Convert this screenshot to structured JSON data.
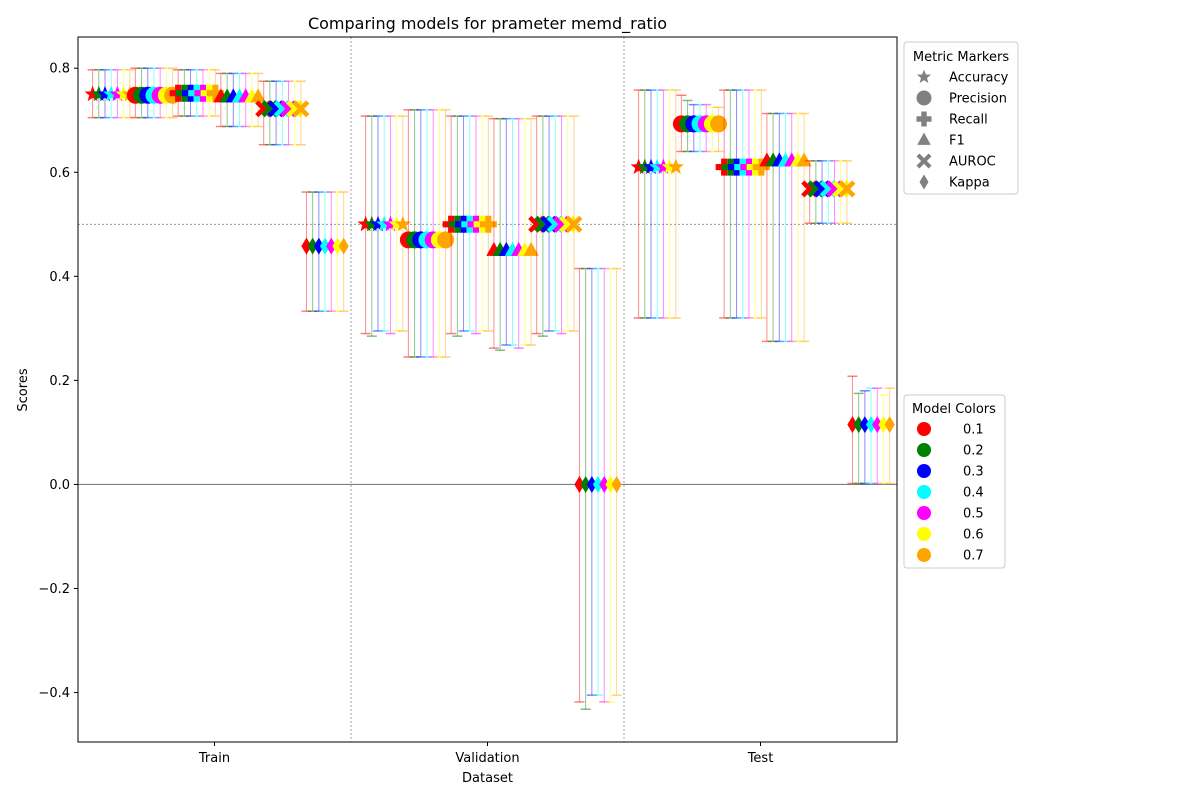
{
  "chart_data": {
    "type": "scatter",
    "title": "Comparing models for prameter memd_ratio",
    "xlabel": "Dataset",
    "ylabel": "Scores",
    "categories": [
      "Train",
      "Validation",
      "Test"
    ],
    "ylim": [
      -0.495,
      0.86
    ],
    "yticks": [
      -0.4,
      -0.2,
      0.0,
      0.2,
      0.4,
      0.6,
      0.8
    ],
    "ytick_labels": [
      "−0.4",
      "−0.2",
      "0.0",
      "0.2",
      "0.4",
      "0.6",
      "0.8"
    ],
    "reference_lines": [
      0.0,
      0.5
    ],
    "metrics": [
      "Accuracy",
      "Precision",
      "Recall",
      "F1",
      "AUROC",
      "Kappa"
    ],
    "metric_markers": [
      "star",
      "circle",
      "plus",
      "triangle",
      "cross",
      "diamond"
    ],
    "models": [
      "0.1",
      "0.2",
      "0.3",
      "0.4",
      "0.5",
      "0.6",
      "0.7"
    ],
    "model_colors": [
      "#ff0000",
      "#008000",
      "#0000ff",
      "#00ffff",
      "#ff00ff",
      "#ffff00",
      "#ffa500"
    ],
    "legend_markers_title": "Metric Markers",
    "legend_colors_title": "Model Colors",
    "legend_position": "outside-right",
    "series": [
      {
        "dataset": "Train",
        "metric": "Accuracy",
        "values": [
          0.75,
          0.75,
          0.75,
          0.75,
          0.75,
          0.75,
          0.75
        ],
        "err_low": [
          0.705,
          0.705,
          0.705,
          0.705,
          0.705,
          0.705,
          0.705
        ],
        "err_high": [
          0.797,
          0.797,
          0.797,
          0.797,
          0.797,
          0.797,
          0.797
        ]
      },
      {
        "dataset": "Train",
        "metric": "Precision",
        "values": [
          0.748,
          0.748,
          0.748,
          0.748,
          0.748,
          0.748,
          0.748
        ],
        "err_low": [
          0.705,
          0.705,
          0.705,
          0.705,
          0.705,
          0.705,
          0.705
        ],
        "err_high": [
          0.8,
          0.8,
          0.8,
          0.8,
          0.8,
          0.8,
          0.8
        ]
      },
      {
        "dataset": "Train",
        "metric": "Recall",
        "values": [
          0.752,
          0.752,
          0.752,
          0.752,
          0.752,
          0.752,
          0.752
        ],
        "err_low": [
          0.708,
          0.708,
          0.708,
          0.708,
          0.708,
          0.708,
          0.708
        ],
        "err_high": [
          0.797,
          0.797,
          0.797,
          0.797,
          0.797,
          0.797,
          0.797
        ]
      },
      {
        "dataset": "Train",
        "metric": "F1",
        "values": [
          0.745,
          0.745,
          0.745,
          0.745,
          0.745,
          0.745,
          0.745
        ],
        "err_low": [
          0.688,
          0.688,
          0.688,
          0.688,
          0.688,
          0.688,
          0.688
        ],
        "err_high": [
          0.79,
          0.79,
          0.79,
          0.79,
          0.79,
          0.79,
          0.79
        ]
      },
      {
        "dataset": "Train",
        "metric": "AUROC",
        "values": [
          0.722,
          0.722,
          0.722,
          0.722,
          0.722,
          0.722,
          0.722
        ],
        "err_low": [
          0.653,
          0.653,
          0.653,
          0.653,
          0.653,
          0.653,
          0.653
        ],
        "err_high": [
          0.775,
          0.775,
          0.775,
          0.775,
          0.775,
          0.775,
          0.775
        ]
      },
      {
        "dataset": "Train",
        "metric": "Kappa",
        "values": [
          0.458,
          0.458,
          0.458,
          0.458,
          0.458,
          0.458,
          0.458
        ],
        "err_low": [
          0.333,
          0.333,
          0.333,
          0.333,
          0.333,
          0.333,
          0.333
        ],
        "err_high": [
          0.562,
          0.562,
          0.562,
          0.562,
          0.562,
          0.562,
          0.562
        ]
      },
      {
        "dataset": "Validation",
        "metric": "Accuracy",
        "values": [
          0.5,
          0.5,
          0.5,
          0.5,
          0.5,
          0.5,
          0.5
        ],
        "err_low": [
          0.29,
          0.285,
          0.295,
          0.295,
          0.29,
          0.295,
          0.295
        ],
        "err_high": [
          0.708,
          0.708,
          0.708,
          0.708,
          0.708,
          0.708,
          0.708
        ]
      },
      {
        "dataset": "Validation",
        "metric": "Precision",
        "values": [
          0.47,
          0.47,
          0.47,
          0.47,
          0.47,
          0.47,
          0.47
        ],
        "err_low": [
          0.245,
          0.245,
          0.245,
          0.245,
          0.245,
          0.245,
          0.245
        ],
        "err_high": [
          0.72,
          0.72,
          0.72,
          0.72,
          0.72,
          0.72,
          0.72
        ]
      },
      {
        "dataset": "Validation",
        "metric": "Recall",
        "values": [
          0.5,
          0.5,
          0.5,
          0.5,
          0.5,
          0.5,
          0.5
        ],
        "err_low": [
          0.29,
          0.285,
          0.295,
          0.295,
          0.29,
          0.295,
          0.295
        ],
        "err_high": [
          0.708,
          0.708,
          0.708,
          0.708,
          0.708,
          0.708,
          0.708
        ]
      },
      {
        "dataset": "Validation",
        "metric": "F1",
        "values": [
          0.45,
          0.45,
          0.45,
          0.45,
          0.45,
          0.45,
          0.45
        ],
        "err_low": [
          0.262,
          0.258,
          0.268,
          0.268,
          0.262,
          0.268,
          0.268
        ],
        "err_high": [
          0.703,
          0.703,
          0.703,
          0.703,
          0.703,
          0.703,
          0.703
        ]
      },
      {
        "dataset": "Validation",
        "metric": "AUROC",
        "values": [
          0.5,
          0.5,
          0.5,
          0.5,
          0.5,
          0.5,
          0.5
        ],
        "err_low": [
          0.29,
          0.285,
          0.295,
          0.295,
          0.29,
          0.295,
          0.295
        ],
        "err_high": [
          0.708,
          0.708,
          0.708,
          0.708,
          0.708,
          0.708,
          0.708
        ]
      },
      {
        "dataset": "Validation",
        "metric": "Kappa",
        "values": [
          0.0,
          0.0,
          0.0,
          0.0,
          0.0,
          0.0,
          0.0
        ],
        "err_low": [
          -0.418,
          -0.432,
          -0.405,
          -0.405,
          -0.418,
          -0.418,
          -0.405
        ],
        "err_high": [
          0.415,
          0.415,
          0.415,
          0.415,
          0.415,
          0.415,
          0.415
        ]
      },
      {
        "dataset": "Test",
        "metric": "Accuracy",
        "values": [
          0.61,
          0.61,
          0.61,
          0.61,
          0.61,
          0.61,
          0.61
        ],
        "err_low": [
          0.32,
          0.32,
          0.32,
          0.32,
          0.32,
          0.32,
          0.32
        ],
        "err_high": [
          0.758,
          0.758,
          0.758,
          0.758,
          0.758,
          0.758,
          0.758
        ]
      },
      {
        "dataset": "Test",
        "metric": "Precision",
        "values": [
          0.693,
          0.693,
          0.693,
          0.693,
          0.693,
          0.693,
          0.693
        ],
        "err_low": [
          0.64,
          0.64,
          0.64,
          0.64,
          0.64,
          0.64,
          0.64
        ],
        "err_high": [
          0.748,
          0.738,
          0.73,
          0.73,
          0.73,
          0.725,
          0.725
        ]
      },
      {
        "dataset": "Test",
        "metric": "Recall",
        "values": [
          0.61,
          0.61,
          0.61,
          0.61,
          0.61,
          0.61,
          0.61
        ],
        "err_low": [
          0.32,
          0.32,
          0.32,
          0.32,
          0.32,
          0.32,
          0.32
        ],
        "err_high": [
          0.758,
          0.758,
          0.758,
          0.758,
          0.758,
          0.758,
          0.758
        ]
      },
      {
        "dataset": "Test",
        "metric": "F1",
        "values": [
          0.622,
          0.622,
          0.622,
          0.622,
          0.622,
          0.622,
          0.622
        ],
        "err_low": [
          0.275,
          0.275,
          0.275,
          0.275,
          0.275,
          0.275,
          0.275
        ],
        "err_high": [
          0.713,
          0.713,
          0.713,
          0.713,
          0.713,
          0.713,
          0.713
        ]
      },
      {
        "dataset": "Test",
        "metric": "AUROC",
        "values": [
          0.568,
          0.568,
          0.568,
          0.568,
          0.568,
          0.568,
          0.568
        ],
        "err_low": [
          0.502,
          0.502,
          0.502,
          0.502,
          0.502,
          0.502,
          0.502
        ],
        "err_high": [
          0.622,
          0.622,
          0.622,
          0.622,
          0.622,
          0.622,
          0.622
        ]
      },
      {
        "dataset": "Test",
        "metric": "Kappa",
        "values": [
          0.115,
          0.115,
          0.115,
          0.115,
          0.115,
          0.115,
          0.115
        ],
        "err_low": [
          0.002,
          0.002,
          0.002,
          0.002,
          0.002,
          0.002,
          0.002
        ],
        "err_high": [
          0.208,
          0.175,
          0.18,
          0.185,
          0.185,
          0.172,
          0.185
        ]
      }
    ]
  }
}
